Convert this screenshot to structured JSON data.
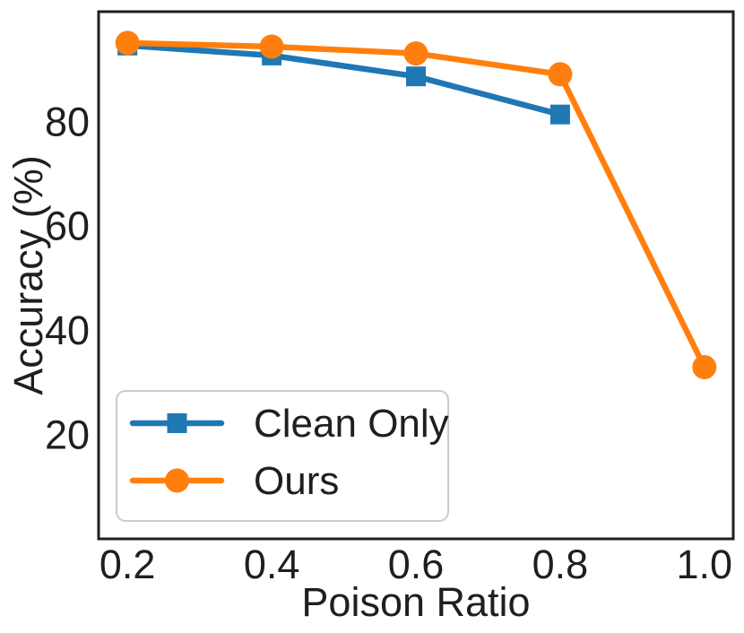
{
  "chart_data": {
    "type": "line",
    "title": "",
    "xlabel": "Poison Ratio",
    "ylabel": "Accuracy (%)",
    "xlim": [
      0.16,
      1.04
    ],
    "ylim": [
      0,
      101
    ],
    "grid": false,
    "legend_position": "lower left",
    "x_ticks": [
      0.2,
      0.4,
      0.6,
      0.8,
      1.0
    ],
    "x_tick_labels": [
      "0.2",
      "0.4",
      "0.6",
      "0.8",
      "1.0"
    ],
    "y_ticks": [
      20,
      40,
      60,
      80
    ],
    "y_tick_labels": [
      "20",
      "40",
      "60",
      "80"
    ],
    "series": [
      {
        "name": "Clean Only",
        "color": "#1f77b4",
        "marker": "square",
        "x": [
          0.2,
          0.4,
          0.6,
          0.8
        ],
        "y": [
          94.5,
          92.6,
          88.6,
          81.3
        ]
      },
      {
        "name": "Ours",
        "color": "#ff7f0e",
        "marker": "circle",
        "x": [
          0.2,
          0.4,
          0.6,
          0.8,
          1.0
        ],
        "y": [
          95.0,
          94.3,
          93.0,
          89.0,
          32.9
        ]
      }
    ]
  },
  "colors": {
    "text": "#1f1f1f",
    "spine": "#1f1f1f",
    "legend_border": "#cccccc",
    "background": "#ffffff"
  }
}
